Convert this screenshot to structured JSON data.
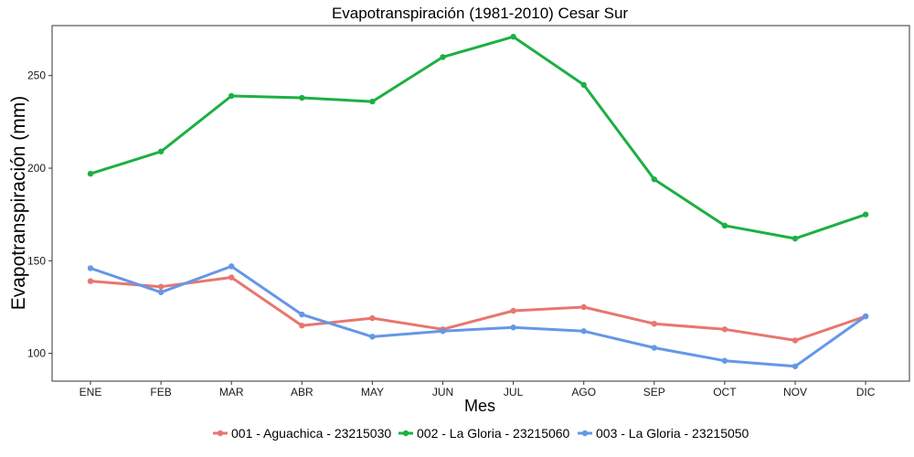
{
  "chart_data": {
    "type": "line",
    "title": "Evapotranspiración (1981-2010)  Cesar Sur",
    "xlabel": "Mes",
    "ylabel": "Evapotranspiración  (mm)",
    "categories": [
      "ENE",
      "FEB",
      "MAR",
      "ABR",
      "MAY",
      "JUN",
      "JUL",
      "AGO",
      "SEP",
      "OCT",
      "NOV",
      "DIC"
    ],
    "ylim": [
      85,
      277
    ],
    "yticks": [
      100,
      150,
      200,
      250
    ],
    "grid": false,
    "legend_position": "bottom",
    "series": [
      {
        "name": "001 - Aguachica - 23215030",
        "color": "#e8766f",
        "values": [
          139,
          136,
          141,
          115,
          119,
          113,
          123,
          125,
          116,
          113,
          107,
          120
        ]
      },
      {
        "name": "002 - La Gloria - 23215060",
        "color": "#1cb043",
        "values": [
          197,
          209,
          239,
          238,
          236,
          260,
          271,
          245,
          194,
          169,
          162,
          175
        ]
      },
      {
        "name": "003 - La Gloria - 23215050",
        "color": "#6597e7",
        "values": [
          146,
          133,
          147,
          121,
          109,
          112,
          114,
          112,
          103,
          96,
          93,
          120
        ]
      }
    ]
  }
}
